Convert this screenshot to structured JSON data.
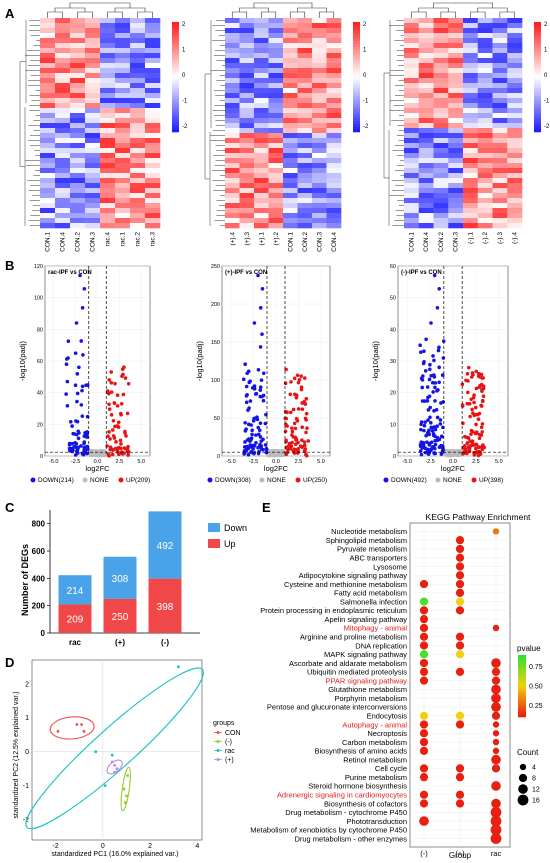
{
  "panels": {
    "A": "A",
    "B": "B",
    "C": "C",
    "D": "D",
    "E": "E"
  },
  "heatmaps": [
    {
      "labels": [
        "CON.1",
        "CON.4",
        "CON.2",
        "CON.3",
        "rac.4",
        "rac.1",
        "rac.2",
        "rac.3"
      ]
    },
    {
      "labels": [
        "(+).4",
        "(+).3",
        "(+).1",
        "(+).2",
        "CON.1",
        "CON.2",
        "CON.3",
        "CON.4"
      ]
    },
    {
      "labels": [
        "CON.1",
        "CON.4",
        "CON.2",
        "CON.3",
        "(-).1",
        "(-).2",
        "(-).3",
        "(-).4"
      ]
    }
  ],
  "heatmap_scale": {
    "ticks": [
      "2",
      "1",
      "0",
      "-1",
      "-2"
    ]
  },
  "volcano": {
    "ylabel": "-log10(padj)",
    "xlabel": "log2FC",
    "xticks": [
      "-5.0",
      "-2.5",
      "0.0",
      "2.5",
      "5.0"
    ],
    "legend": {
      "down": "DOWN",
      "none": "NONE",
      "up": "UP"
    },
    "plots": [
      {
        "title": "rac-IPF vs CON",
        "yticks": [
          "0",
          "20",
          "40",
          "60",
          "80",
          "100",
          "120"
        ],
        "down": "DOWN(214)",
        "none": "NONE",
        "up": "UP(209)"
      },
      {
        "title": "(+)-IPF vs CON",
        "yticks": [
          "0",
          "50",
          "100",
          "150",
          "200",
          "250"
        ],
        "down": "DOWN(308)",
        "none": "NONE",
        "up": "UP(250)"
      },
      {
        "title": "(-)-IPF vs CON",
        "yticks": [
          "0",
          "10",
          "20",
          "30",
          "40",
          "50",
          "60"
        ],
        "down": "DOWN(492)",
        "none": "NONE",
        "up": "UP(398)"
      }
    ]
  },
  "chart_data": [
    {
      "type": "bar",
      "categories": [
        "rac",
        "(+)",
        "(-)"
      ],
      "series": [
        {
          "name": "Up",
          "values": [
            209,
            250,
            398
          ],
          "color": "#f04848"
        },
        {
          "name": "Down",
          "values": [
            214,
            308,
            492
          ],
          "color": "#4aa3e8"
        }
      ],
      "ylabel": "Number of DEGs",
      "yticks": [
        "0",
        "200",
        "400",
        "600",
        "800"
      ],
      "ylim": [
        0,
        900
      ],
      "legend": "top-right"
    },
    {
      "type": "scatter",
      "xlabel": "standardized PC1 (16.0% explained var.)",
      "ylabel": "standardized PC2 (12.5% explained var.)",
      "xticks": [
        "-2",
        "0",
        "2",
        "4"
      ],
      "yticks": [
        "-2",
        "-1",
        "0",
        "1",
        "2"
      ],
      "xlim": [
        -3,
        4.2
      ],
      "ylim": [
        -2.6,
        2.7
      ],
      "legend_title": "groups",
      "series": [
        {
          "name": "CON",
          "color": "#f0504a",
          "points": [
            [
              -1.9,
              0.6
            ],
            [
              -1.1,
              0.8
            ],
            [
              -0.9,
              0.8
            ],
            [
              -0.8,
              0.6
            ]
          ]
        },
        {
          "name": "(-)",
          "color": "#9ac92e",
          "points": [
            [
              0.95,
              -1.5
            ],
            [
              1.05,
              -0.7
            ],
            [
              0.9,
              -1.1
            ],
            [
              1.0,
              -1.3
            ]
          ]
        },
        {
          "name": "rac",
          "color": "#18c2c2",
          "points": [
            [
              -0.3,
              0.0
            ],
            [
              0.4,
              -0.1
            ],
            [
              0.1,
              -1.0
            ],
            [
              3.2,
              2.5
            ]
          ]
        },
        {
          "name": "(+)",
          "color": "#b58be8",
          "points": [
            [
              0.4,
              -0.3
            ],
            [
              0.5,
              -0.4
            ],
            [
              0.6,
              -0.5
            ],
            [
              0.5,
              -0.6
            ]
          ]
        }
      ]
    },
    {
      "type": "scatter",
      "title": "KEGG Pathway Enrichment",
      "xlabel": "Group",
      "groups": [
        "(-)",
        "(+)",
        "rac"
      ],
      "pathways": [
        "Nucleotide metabolism",
        "Sphingolipid metabolism",
        "Pyruvate metabolism",
        "ABC transporters",
        "Lysosome",
        "Adipocytokine signaling pathway",
        "Cysteine and methionine metabolism",
        "Fatty acid metabolism",
        "Salmonella infection",
        "Protein processing in endoplasmic reticulum",
        "Apelin signaling pathway",
        "Mitophagy - animal",
        "Arginine and proline metabolism",
        "DNA replication",
        "MAPK signaling pathway",
        "Ascorbate and aldarate metabolism",
        "Ubiquitin mediated proteolysis",
        "PPAR signaling pathway",
        "Glutathione metabolism",
        "Porphyrin metabolism",
        "Pentose and glucuronate interconversions",
        "Endocytosis",
        "Autophagy - animal",
        "Necroptosis",
        "Carbon metabolism",
        "Biosynthesis of amino acids",
        "Retinol metabolism",
        "Cell cycle",
        "Purine metabolism",
        "Steroid hormone biosynthesis",
        "Adrenergic signaling in cardiomyocytes",
        "Biosynthesis of cofactors",
        "Drug metabolism - cytochrome P450",
        "Phototransduction",
        "Metabolism of xenobiotics by cytochrome P450",
        "Drug metabolism - other enzymes"
      ],
      "highlighted": [
        "Mitophagy - animal",
        "PPAR signaling pathway",
        "Autophagy - animal",
        "Adrenergic signaling in cardiomyocytes"
      ],
      "points": [
        {
          "p": 0,
          "g": 2,
          "count": 4,
          "pv": 0.3
        },
        {
          "p": 1,
          "g": 1,
          "count": 8,
          "pv": 0.1
        },
        {
          "p": 2,
          "g": 1,
          "count": 8,
          "pv": 0.1
        },
        {
          "p": 3,
          "g": 1,
          "count": 8,
          "pv": 0.1
        },
        {
          "p": 4,
          "g": 1,
          "count": 8,
          "pv": 0.1
        },
        {
          "p": 5,
          "g": 1,
          "count": 8,
          "pv": 0.1
        },
        {
          "p": 6,
          "g": 0,
          "count": 8,
          "pv": 0.1
        },
        {
          "p": 6,
          "g": 1,
          "count": 8,
          "pv": 0.1
        },
        {
          "p": 7,
          "g": 1,
          "count": 8,
          "pv": 0.1
        },
        {
          "p": 8,
          "g": 0,
          "count": 8,
          "pv": 0.85
        },
        {
          "p": 8,
          "g": 1,
          "count": 8,
          "pv": 0.5
        },
        {
          "p": 9,
          "g": 0,
          "count": 8,
          "pv": 0.1
        },
        {
          "p": 9,
          "g": 1,
          "count": 8,
          "pv": 0.1
        },
        {
          "p": 10,
          "g": 0,
          "count": 8,
          "pv": 0.1
        },
        {
          "p": 11,
          "g": 0,
          "count": 8,
          "pv": 0.1
        },
        {
          "p": 11,
          "g": 2,
          "count": 4,
          "pv": 0.1
        },
        {
          "p": 12,
          "g": 0,
          "count": 8,
          "pv": 0.1
        },
        {
          "p": 12,
          "g": 1,
          "count": 8,
          "pv": 0.1
        },
        {
          "p": 13,
          "g": 0,
          "count": 8,
          "pv": 0.1
        },
        {
          "p": 13,
          "g": 1,
          "count": 8,
          "pv": 0.1
        },
        {
          "p": 14,
          "g": 0,
          "count": 8,
          "pv": 0.85
        },
        {
          "p": 14,
          "g": 1,
          "count": 8,
          "pv": 0.5
        },
        {
          "p": 15,
          "g": 0,
          "count": 8,
          "pv": 0.1
        },
        {
          "p": 15,
          "g": 2,
          "count": 12,
          "pv": 0.1
        },
        {
          "p": 16,
          "g": 0,
          "count": 8,
          "pv": 0.1
        },
        {
          "p": 16,
          "g": 1,
          "count": 8,
          "pv": 0.1
        },
        {
          "p": 16,
          "g": 2,
          "count": 8,
          "pv": 0.1
        },
        {
          "p": 17,
          "g": 0,
          "count": 8,
          "pv": 0.1
        },
        {
          "p": 17,
          "g": 2,
          "count": 8,
          "pv": 0.1
        },
        {
          "p": 18,
          "g": 2,
          "count": 12,
          "pv": 0.1
        },
        {
          "p": 19,
          "g": 2,
          "count": 12,
          "pv": 0.1
        },
        {
          "p": 20,
          "g": 2,
          "count": 12,
          "pv": 0.1
        },
        {
          "p": 21,
          "g": 0,
          "count": 8,
          "pv": 0.5
        },
        {
          "p": 21,
          "g": 1,
          "count": 8,
          "pv": 0.5
        },
        {
          "p": 21,
          "g": 2,
          "count": 8,
          "pv": 0.1
        },
        {
          "p": 22,
          "g": 0,
          "count": 8,
          "pv": 0.1
        },
        {
          "p": 22,
          "g": 1,
          "count": 8,
          "pv": 0.1
        },
        {
          "p": 22,
          "g": 2,
          "count": 4,
          "pv": 0.1
        },
        {
          "p": 23,
          "g": 0,
          "count": 8,
          "pv": 0.1
        },
        {
          "p": 23,
          "g": 2,
          "count": 4,
          "pv": 0.1
        },
        {
          "p": 24,
          "g": 0,
          "count": 8,
          "pv": 0.1
        },
        {
          "p": 24,
          "g": 2,
          "count": 4,
          "pv": 0.1
        },
        {
          "p": 25,
          "g": 0,
          "count": 8,
          "pv": 0.1
        },
        {
          "p": 25,
          "g": 2,
          "count": 4,
          "pv": 0.1
        },
        {
          "p": 26,
          "g": 2,
          "count": 12,
          "pv": 0.1
        },
        {
          "p": 27,
          "g": 0,
          "count": 8,
          "pv": 0.1
        },
        {
          "p": 27,
          "g": 1,
          "count": 8,
          "pv": 0.1
        },
        {
          "p": 27,
          "g": 2,
          "count": 8,
          "pv": 0.1
        },
        {
          "p": 28,
          "g": 0,
          "count": 8,
          "pv": 0.1
        },
        {
          "p": 28,
          "g": 1,
          "count": 8,
          "pv": 0.1
        },
        {
          "p": 29,
          "g": 2,
          "count": 12,
          "pv": 0.1
        },
        {
          "p": 30,
          "g": 0,
          "count": 8,
          "pv": 0.1
        },
        {
          "p": 30,
          "g": 1,
          "count": 8,
          "pv": 0.1
        },
        {
          "p": 31,
          "g": 0,
          "count": 8,
          "pv": 0.1
        },
        {
          "p": 31,
          "g": 1,
          "count": 8,
          "pv": 0.1
        },
        {
          "p": 31,
          "g": 2,
          "count": 12,
          "pv": 0.1
        },
        {
          "p": 32,
          "g": 2,
          "count": 16,
          "pv": 0.1
        },
        {
          "p": 33,
          "g": 0,
          "count": 12,
          "pv": 0.1
        },
        {
          "p": 33,
          "g": 2,
          "count": 16,
          "pv": 0.1
        },
        {
          "p": 34,
          "g": 2,
          "count": 16,
          "pv": 0.1
        },
        {
          "p": 35,
          "g": 2,
          "count": 16,
          "pv": 0.1
        }
      ],
      "legend": {
        "pvalue_title": "pvalue",
        "pvalue_ticks": [
          "0.75",
          "0.50",
          "0.25"
        ],
        "count_title": "Count",
        "count_ticks": [
          "4",
          "8",
          "12",
          "16"
        ]
      }
    }
  ]
}
